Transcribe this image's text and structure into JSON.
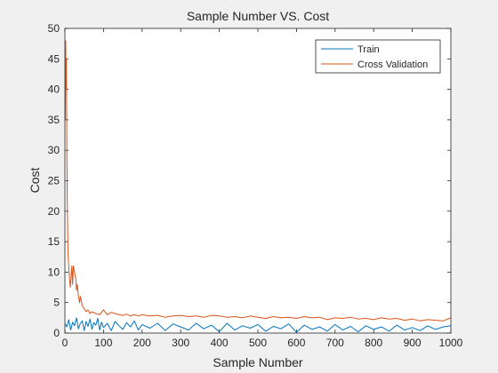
{
  "chart_data": {
    "type": "line",
    "title": "Sample Number VS. Cost",
    "xlabel": "Sample Number",
    "ylabel": "Cost",
    "xlim": [
      0,
      1000
    ],
    "ylim": [
      0,
      50
    ],
    "xticks": [
      0,
      100,
      200,
      300,
      400,
      500,
      600,
      700,
      800,
      900,
      1000
    ],
    "yticks": [
      0,
      5,
      10,
      15,
      20,
      25,
      30,
      35,
      40,
      45,
      50
    ],
    "grid": false,
    "legend_position": "top-right",
    "series": [
      {
        "name": "Train",
        "color": "#0072bd",
        "x": [
          1,
          5,
          10,
          15,
          20,
          25,
          30,
          35,
          40,
          45,
          50,
          55,
          60,
          65,
          70,
          75,
          80,
          85,
          90,
          95,
          100,
          110,
          120,
          130,
          140,
          150,
          160,
          170,
          180,
          190,
          200,
          220,
          240,
          260,
          280,
          300,
          320,
          340,
          360,
          380,
          400,
          420,
          440,
          460,
          480,
          500,
          520,
          540,
          560,
          580,
          600,
          620,
          640,
          660,
          680,
          700,
          720,
          740,
          760,
          780,
          800,
          820,
          840,
          860,
          880,
          900,
          920,
          940,
          960,
          980,
          1000
        ],
        "y": [
          1.5,
          1.0,
          2.2,
          0.5,
          1.8,
          1.2,
          2.5,
          0.7,
          1.6,
          2.0,
          0.4,
          1.9,
          1.1,
          2.3,
          0.6,
          1.7,
          1.3,
          2.4,
          0.5,
          1.8,
          0.9,
          1.6,
          0.4,
          1.9,
          1.2,
          0.6,
          1.7,
          1.0,
          2.0,
          0.5,
          1.4,
          0.8,
          1.6,
          0.4,
          1.5,
          1.0,
          0.5,
          1.6,
          0.7,
          1.3,
          0.2,
          1.6,
          0.5,
          1.2,
          0.8,
          1.4,
          0.3,
          1.1,
          0.7,
          1.5,
          0.1,
          1.3,
          0.6,
          1.0,
          0.3,
          1.4,
          0.5,
          1.1,
          0.2,
          1.2,
          0.6,
          1.0,
          0.3,
          1.3,
          0.5,
          0.9,
          0.4,
          1.2,
          0.6,
          1.0,
          1.2
        ]
      },
      {
        "name": "Cross Validation",
        "color": "#d95319",
        "x": [
          1,
          2,
          3,
          4,
          5,
          6,
          7,
          8,
          10,
          12,
          14,
          16,
          18,
          20,
          22,
          25,
          28,
          30,
          32,
          35,
          38,
          40,
          45,
          50,
          55,
          60,
          65,
          70,
          80,
          90,
          100,
          110,
          120,
          130,
          140,
          150,
          160,
          170,
          180,
          190,
          200,
          220,
          240,
          260,
          280,
          300,
          320,
          340,
          360,
          380,
          400,
          420,
          440,
          460,
          480,
          500,
          520,
          540,
          560,
          580,
          600,
          620,
          640,
          660,
          680,
          700,
          720,
          740,
          760,
          780,
          800,
          820,
          840,
          860,
          880,
          900,
          920,
          940,
          960,
          980,
          1000
        ],
        "y": [
          35,
          48,
          40,
          45,
          30,
          22,
          18,
          13,
          11,
          9,
          7.5,
          9,
          11,
          8,
          11,
          10,
          9,
          7,
          8,
          6,
          5,
          6,
          4.5,
          4,
          3.5,
          3.8,
          3.2,
          3.5,
          3.2,
          3.0,
          3.8,
          3.0,
          3.4,
          3.2,
          3.0,
          2.9,
          3.1,
          2.8,
          3.0,
          2.8,
          3.0,
          2.8,
          2.9,
          2.6,
          2.8,
          2.9,
          2.7,
          2.8,
          2.6,
          2.9,
          2.8,
          2.6,
          2.7,
          2.5,
          2.8,
          2.6,
          2.4,
          2.7,
          2.5,
          2.6,
          2.4,
          2.7,
          2.5,
          2.6,
          2.2,
          2.5,
          2.4,
          2.6,
          2.3,
          2.4,
          2.2,
          2.5,
          2.3,
          2.4,
          2.1,
          2.3,
          2.0,
          2.2,
          2.1,
          2.0,
          2.5
        ]
      }
    ]
  }
}
